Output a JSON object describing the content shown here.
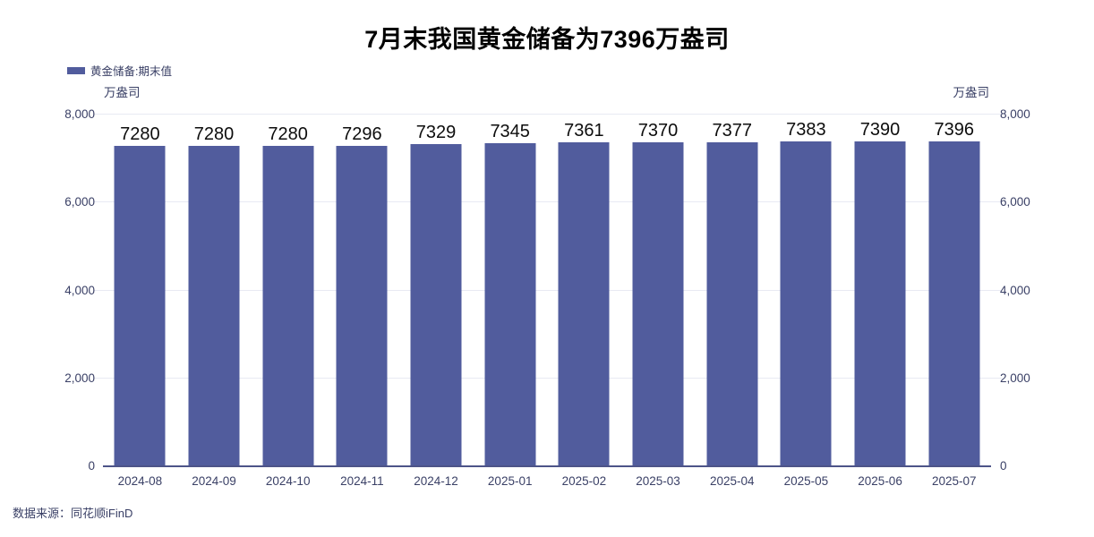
{
  "chart_data": {
    "type": "bar",
    "title": "7月末我国黄金储备为7396万盎司",
    "legend": "黄金储备:期末值",
    "unit_left": "万盎司",
    "unit_right": "万盎司",
    "categories": [
      "2024-08",
      "2024-09",
      "2024-10",
      "2024-11",
      "2024-12",
      "2025-01",
      "2025-02",
      "2025-03",
      "2025-04",
      "2025-05",
      "2025-06",
      "2025-07"
    ],
    "values": [
      7280,
      7280,
      7280,
      7296,
      7329,
      7345,
      7361,
      7370,
      7377,
      7383,
      7390,
      7396
    ],
    "xlabel": "",
    "ylabel": "万盎司",
    "ylim": [
      0,
      8000
    ],
    "yticks": [
      0,
      2000,
      4000,
      6000,
      8000
    ],
    "ytick_labels": [
      "0",
      "2,000",
      "4,000",
      "6,000",
      "8,000"
    ],
    "grid": true,
    "legend_position": "top-left",
    "bar_color": "#515c9d",
    "grid_color": "#e8eaf3",
    "axis_line_color": "#4d5488",
    "axis_text_color": "#3a4066",
    "value_label_color": "#0d0d0d"
  },
  "source": "数据来源：同花顺iFinD"
}
